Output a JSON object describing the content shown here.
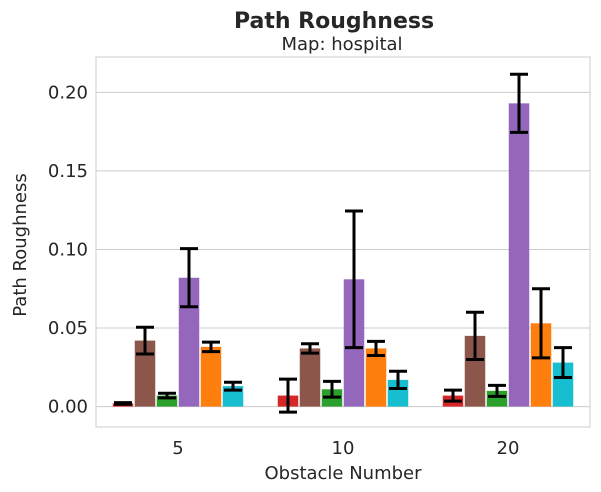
{
  "chart_data": {
    "type": "bar",
    "title": "Path Roughness",
    "subtitle": "Map: hospital",
    "xlabel": "Obstacle Number",
    "ylabel": "Path Roughness",
    "categories": [
      "5",
      "10",
      "20"
    ],
    "ylim": [
      -0.013,
      0.2225
    ],
    "yticks": [
      0.0,
      0.05,
      0.1,
      0.15,
      0.2
    ],
    "ytick_labels": [
      "0.00",
      "0.05",
      "0.10",
      "0.15",
      "0.20"
    ],
    "grid": true,
    "legend": false,
    "series": [
      {
        "color": "#d62728",
        "values": [
          0.002,
          0.007,
          0.007
        ],
        "err": [
          0.0005,
          0.0105,
          0.0035
        ]
      },
      {
        "color": "#8c564b",
        "values": [
          0.042,
          0.037,
          0.045
        ],
        "err": [
          0.0085,
          0.003,
          0.015
        ]
      },
      {
        "color": "#2ca02c",
        "values": [
          0.007,
          0.011,
          0.01
        ],
        "err": [
          0.0015,
          0.005,
          0.0035
        ]
      },
      {
        "color": "#9467bd",
        "values": [
          0.082,
          0.081,
          0.193
        ],
        "err": [
          0.0185,
          0.0435,
          0.0185
        ]
      },
      {
        "color": "#ff7f0e",
        "values": [
          0.038,
          0.037,
          0.053
        ],
        "err": [
          0.003,
          0.0045,
          0.022
        ]
      },
      {
        "color": "#17becf",
        "values": [
          0.013,
          0.017,
          0.028
        ],
        "err": [
          0.0025,
          0.0055,
          0.0095
        ]
      }
    ]
  }
}
